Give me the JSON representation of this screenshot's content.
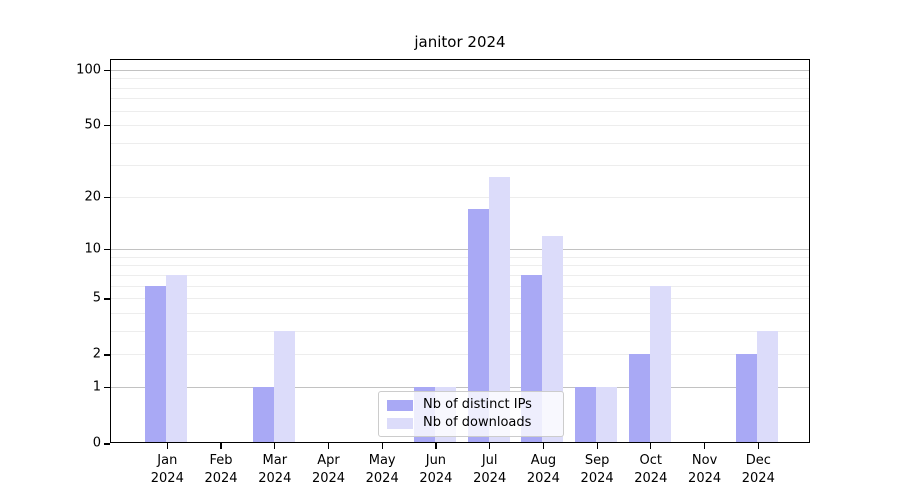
{
  "title": "janitor 2024",
  "colors": {
    "ips_bar": "#a9a9f5",
    "downloads_bar": "#dcdcfa",
    "frame": "#000000",
    "grid_major": "rgba(0,0,0,0.24)",
    "grid_minor": "rgba(0,0,0,0.07)",
    "legend_border": "#cccccc"
  },
  "legend": {
    "items": [
      {
        "key": "ips",
        "label": "Nb of distinct IPs"
      },
      {
        "key": "downloads",
        "label": "Nb of downloads"
      }
    ]
  },
  "chart_data": {
    "type": "bar",
    "title": "janitor 2024",
    "y_scale": "log1p",
    "categories": [
      "Jan",
      "Feb",
      "Mar",
      "Apr",
      "May",
      "Jun",
      "Jul",
      "Aug",
      "Sep",
      "Oct",
      "Nov",
      "Dec"
    ],
    "category_year_line": "2024",
    "series": [
      {
        "name": "Nb of distinct IPs",
        "color_key": "ips_bar",
        "values": [
          6,
          0,
          1,
          0,
          0,
          1,
          17,
          7,
          1,
          2,
          0,
          2
        ]
      },
      {
        "name": "Nb of downloads",
        "color_key": "downloads_bar",
        "values": [
          7,
          0,
          3,
          0,
          0,
          1,
          26,
          12,
          1,
          6,
          0,
          3
        ]
      }
    ],
    "ytick_values": [
      0,
      1,
      2,
      5,
      10,
      20,
      50,
      100
    ],
    "ytick_labels": [
      "0",
      "1",
      "2",
      "5",
      "10",
      "20",
      "50",
      "100"
    ],
    "grid_major_values": [
      1,
      10,
      100
    ],
    "grid_minor_values": [
      2,
      3,
      4,
      5,
      6,
      7,
      8,
      9,
      20,
      30,
      40,
      50,
      60,
      70,
      80,
      90
    ],
    "ylim": [
      0,
      115
    ],
    "grid": true,
    "legend_position": "lower center inside"
  }
}
